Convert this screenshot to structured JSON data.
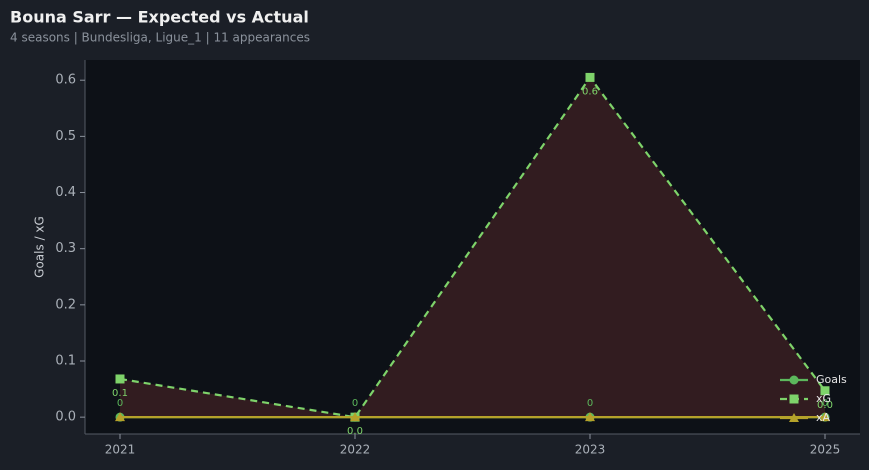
{
  "chart_data": {
    "type": "line",
    "title": "Bouna Sarr — Expected vs Actual",
    "subtitle": "4 seasons | Bundesliga, Ligue_1 | 11 appearances",
    "y_label": "Goals / xG",
    "categories": [
      "2021",
      "2022",
      "2023",
      "2025"
    ],
    "series": [
      {
        "name": "Goals",
        "color": "#5cb85c",
        "marker": "circle",
        "dash": false,
        "values": [
          0,
          0,
          0,
          0
        ]
      },
      {
        "name": "xG",
        "color": "#7ed36a",
        "marker": "square",
        "dash": true,
        "values": [
          0.068,
          0,
          0.605,
          0.047
        ],
        "value_labels": [
          "0.1",
          "0.0",
          "0.6",
          "0.0"
        ]
      },
      {
        "name": "xA",
        "color": "#b5a22a",
        "marker": "triangle",
        "dash": false,
        "values": [
          0,
          0,
          0,
          0
        ]
      }
    ],
    "ylim": [
      -0.03,
      0.636
    ],
    "yticks": [
      {
        "value": 0,
        "label": "0.0"
      },
      0.1,
      0.2,
      0.3,
      0.4,
      0.5,
      0.6
    ],
    "legend": "lower right",
    "fill_between": "#3a1f22"
  }
}
